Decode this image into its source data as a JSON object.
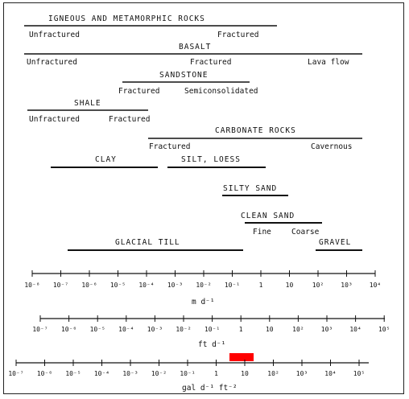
{
  "materials": {
    "igneous": {
      "label": "IGNEOUS AND METAMORPHIC ROCKS",
      "notes": [
        "Unfractured",
        "Fractured"
      ]
    },
    "basalt": {
      "label": "BASALT",
      "notes": [
        "Unfractured",
        "Fractured",
        "Lava flow"
      ]
    },
    "sandstone": {
      "label": "SANDSTONE",
      "notes": [
        "Fractured",
        "Semiconsolidated"
      ]
    },
    "shale": {
      "label": "SHALE",
      "notes": [
        "Unfractured",
        "Fractured"
      ]
    },
    "carbonate": {
      "label": "CARBONATE ROCKS",
      "notes": [
        "Fractured",
        "Cavernous"
      ]
    },
    "clay": {
      "label": "CLAY"
    },
    "silt": {
      "label": "SILT, LOESS"
    },
    "silty_sand": {
      "label": "SILTY SAND"
    },
    "clean_sand": {
      "label": "CLEAN SAND",
      "notes": [
        "Fine",
        "Coarse"
      ]
    },
    "glacial_till": {
      "label": "GLACIAL TILL"
    },
    "gravel": {
      "label": "GRAVEL"
    }
  },
  "scales": [
    {
      "unit": "m d⁻¹",
      "ticks": [
        "10⁻⁸",
        "10⁻⁷",
        "10⁻⁶",
        "10⁻⁵",
        "10⁻⁴",
        "10⁻³",
        "10⁻²",
        "10⁻¹",
        "1",
        "10",
        "10²",
        "10³",
        "10⁴"
      ]
    },
    {
      "unit": "ft d⁻¹",
      "ticks": [
        "10⁻⁷",
        "10⁻⁶",
        "10⁻⁵",
        "10⁻⁴",
        "10⁻³",
        "10⁻²",
        "10⁻¹",
        "1",
        "10",
        "10²",
        "10³",
        "10⁴",
        "10⁵"
      ]
    },
    {
      "unit": "gal d⁻¹ ft⁻²",
      "ticks": [
        "10⁻⁷",
        "10⁻⁶",
        "10⁻⁵",
        "10⁻⁴",
        "10⁻³",
        "10⁻²",
        "10⁻¹",
        "1",
        "10",
        "10²",
        "10³",
        "10⁴",
        "10⁵"
      ]
    }
  ],
  "highlight": {
    "color": "#ff0000"
  }
}
